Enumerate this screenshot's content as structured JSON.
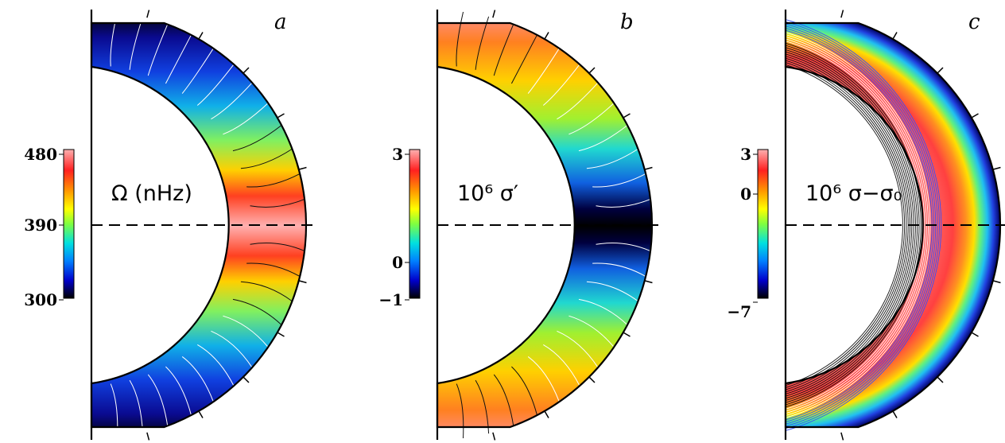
{
  "chart_data": [
    {
      "type": "heatmap",
      "panel_letter": "a",
      "quantity_label": "Ω (nHz)",
      "colorbar": {
        "ticks": [
          "480",
          "390",
          "300"
        ],
        "range": [
          300,
          480
        ]
      },
      "colors": [
        "#000000",
        "#0000cc",
        "#0080ff",
        "#00e0e0",
        "#80ff40",
        "#ffff00",
        "#ff9900",
        "#ff2020",
        "#ffb0b0"
      ],
      "equator_line": "dashed"
    },
    {
      "type": "heatmap",
      "panel_letter": "b",
      "quantity_label": "10⁶ σ′",
      "colorbar": {
        "ticks": [
          "3",
          "0",
          "−1"
        ],
        "range": [
          -1,
          3
        ]
      },
      "colors": [
        "#000000",
        "#0000cc",
        "#0080ff",
        "#00e0e0",
        "#80ff40",
        "#ffff00",
        "#ff9900",
        "#ff2020",
        "#ffb0b0"
      ],
      "equator_line": "dashed"
    },
    {
      "type": "heatmap",
      "panel_letter": "c",
      "quantity_label": "10⁶ σ−σ₀",
      "colorbar": {
        "ticks": [
          "3",
          "0",
          "−7"
        ],
        "range": [
          -7,
          3
        ]
      },
      "colors": [
        "#000000",
        "#0000cc",
        "#0080ff",
        "#00e0e0",
        "#80ff40",
        "#ffff00",
        "#ff9900",
        "#ff2020",
        "#ffb0b0"
      ],
      "equator_line": "dashed"
    }
  ]
}
